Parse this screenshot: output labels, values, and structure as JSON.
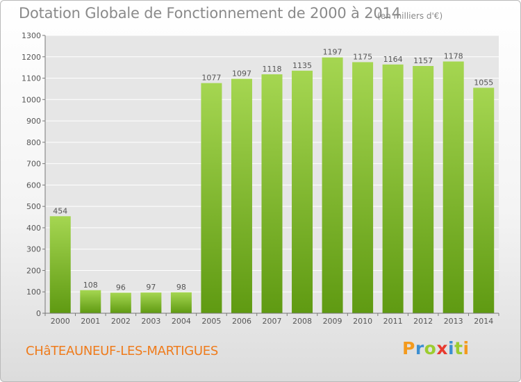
{
  "header": {
    "title": "Dotation Globale de Fonctionnement de 2000 à 2014",
    "unit": "(en milliers d'€)"
  },
  "footer": {
    "commune": "CHâTEAUNEUF-LES-MARTIGUES",
    "logo_letters": [
      "P",
      "r",
      "o",
      "x",
      "i",
      "t",
      "i"
    ],
    "logo_colors": [
      "#f39a1d",
      "#3c8fd1",
      "#9bcc2f",
      "#e83a2f",
      "#3c8fd1",
      "#9bcc2f",
      "#f39a1d"
    ]
  },
  "chart_data": {
    "type": "bar",
    "title": "Dotation Globale de Fonctionnement de 2000 à 2014",
    "subtitle": "(en milliers d'€)",
    "categories": [
      "2000",
      "2001",
      "2002",
      "2003",
      "2004",
      "2005",
      "2006",
      "2007",
      "2008",
      "2009",
      "2010",
      "2011",
      "2012",
      "2013",
      "2014"
    ],
    "values": [
      454,
      108,
      96,
      97,
      98,
      1077,
      1097,
      1118,
      1135,
      1197,
      1175,
      1164,
      1157,
      1178,
      1055
    ],
    "ylim": [
      0,
      1300
    ],
    "yticks": [
      0,
      100,
      200,
      300,
      400,
      500,
      600,
      700,
      800,
      900,
      1000,
      1100,
      1200,
      1300
    ],
    "grid": true,
    "bar_color_top": "#a5d651",
    "bar_color_bottom": "#5f9a12",
    "grid_color": "#ffffff"
  }
}
